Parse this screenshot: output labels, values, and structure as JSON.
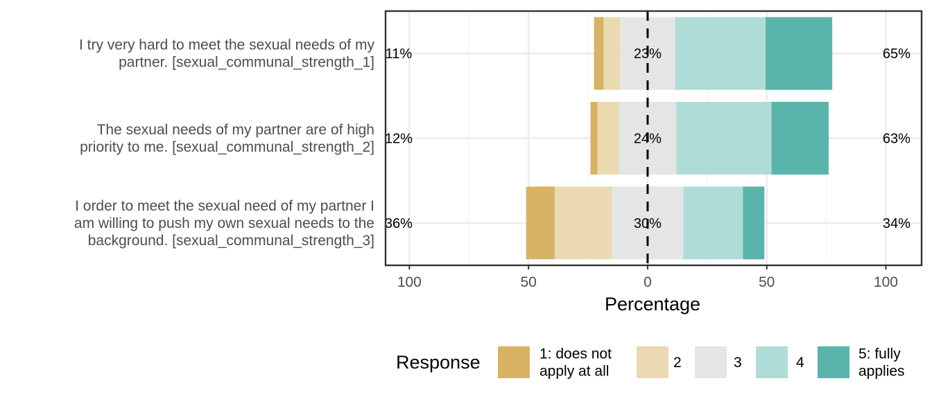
{
  "chart_data": {
    "type": "bar",
    "orientation": "horizontal-diverging-stacked",
    "xlabel": "Percentage",
    "xlim": [
      -110,
      115
    ],
    "x_ticks": [
      {
        "value": -100,
        "label": "100"
      },
      {
        "value": -50,
        "label": "50"
      },
      {
        "value": 0,
        "label": "0"
      },
      {
        "value": 50,
        "label": "50"
      },
      {
        "value": 100,
        "label": "100"
      }
    ],
    "categories": [
      [
        "I try very hard to meet the sexual needs of my",
        "partner. [sexual_communal_strength_1]"
      ],
      [
        "The sexual needs of my partner are of high",
        "priority to me. [sexual_communal_strength_2]"
      ],
      [
        "I order to meet the sexual need of my partner I",
        "am willing to push my own sexual needs to the",
        "background. [sexual_communal_strength_3]"
      ]
    ],
    "legend_title": "Response",
    "legend_position": "bottom",
    "series": [
      {
        "name": [
          "1: does not",
          "apply at all"
        ],
        "color": "#D8B365",
        "values": [
          4,
          3,
          12
        ]
      },
      {
        "name": [
          "2"
        ],
        "color": "#EBD9B2",
        "values": [
          7,
          9,
          24
        ]
      },
      {
        "name": [
          "3"
        ],
        "color": "#E5E5E5",
        "values": [
          23,
          24,
          30
        ]
      },
      {
        "name": [
          "4"
        ],
        "color": "#B0DCD7",
        "values": [
          38,
          40,
          25
        ]
      },
      {
        "name": [
          "5: fully",
          "applies"
        ],
        "color": "#5AB4AC",
        "values": [
          28,
          24,
          9
        ]
      }
    ],
    "left_labels": [
      "11%",
      "12%",
      "36%"
    ],
    "center_labels": [
      "23%",
      "24%",
      "30%"
    ],
    "right_labels": [
      "65%",
      "63%",
      "34%"
    ],
    "grid": true
  }
}
